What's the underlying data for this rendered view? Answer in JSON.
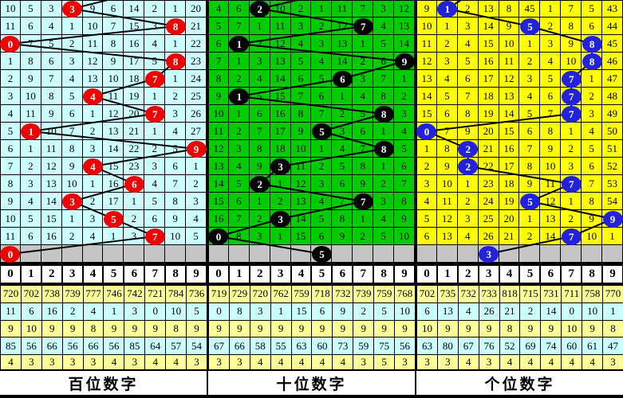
{
  "chart_data": {
    "type": "table",
    "description_labels": {
      "hundreds": "百位数字",
      "tens": "十位数字",
      "units": "个位数字"
    },
    "digits_header": [
      "0",
      "1",
      "2",
      "3",
      "4",
      "5",
      "6",
      "7",
      "8",
      "9"
    ],
    "colors": {
      "gray_row": "#C5C5C5",
      "stats_stripes": [
        "#FFFF99",
        "#CCFFFF",
        "#FFFF99",
        "#CCFFFF",
        "#FFFF99"
      ],
      "line": "#000000",
      "grid_border": "#000000"
    },
    "panels": [
      {
        "id": "hundreds",
        "footer_label": "百位数字",
        "bg": "#CCFFFF",
        "ball_color": "#EE0000",
        "entry_col": 6.6,
        "rows": [
          [
            10,
            5,
            3,
            "B",
            9,
            6,
            14,
            2,
            1,
            20
          ],
          [
            11,
            6,
            4,
            1,
            10,
            7,
            15,
            3,
            "B",
            21
          ],
          [
            "B",
            7,
            5,
            2,
            11,
            8,
            16,
            4,
            1,
            22
          ],
          [
            1,
            8,
            6,
            3,
            12,
            9,
            17,
            5,
            "B",
            23
          ],
          [
            2,
            9,
            7,
            4,
            13,
            10,
            18,
            "B",
            1,
            24
          ],
          [
            3,
            10,
            8,
            5,
            "B",
            11,
            19,
            1,
            2,
            25
          ],
          [
            4,
            11,
            9,
            6,
            1,
            12,
            20,
            "B",
            3,
            26
          ],
          [
            5,
            "B",
            10,
            7,
            2,
            13,
            21,
            1,
            4,
            27
          ],
          [
            6,
            1,
            11,
            8,
            3,
            14,
            22,
            2,
            5,
            "B"
          ],
          [
            7,
            2,
            12,
            9,
            "B",
            15,
            23,
            3,
            6,
            1
          ],
          [
            8,
            3,
            13,
            10,
            1,
            16,
            "B",
            4,
            7,
            2
          ],
          [
            9,
            4,
            14,
            "B",
            2,
            17,
            1,
            5,
            8,
            3
          ],
          [
            10,
            5,
            15,
            1,
            3,
            "B",
            2,
            6,
            9,
            4
          ],
          [
            11,
            6,
            16,
            2,
            4,
            1,
            3,
            "B",
            10,
            5
          ]
        ],
        "gray_row_ball_col": 0,
        "stats": [
          [
            720,
            702,
            738,
            739,
            777,
            746,
            742,
            721,
            784,
            736
          ],
          [
            11,
            6,
            16,
            2,
            4,
            1,
            3,
            0,
            10,
            5
          ],
          [
            9,
            10,
            9,
            9,
            8,
            9,
            9,
            9,
            8,
            9
          ],
          [
            85,
            56,
            66,
            56,
            66,
            56,
            85,
            64,
            57,
            54
          ],
          [
            4,
            3,
            3,
            3,
            3,
            4,
            3,
            4,
            4,
            3
          ]
        ]
      },
      {
        "id": "tens",
        "footer_label": "十位数字",
        "bg": "#00CC00",
        "ball_color": "#000000",
        "entry_col": 5.8,
        "rows": [
          [
            4,
            6,
            "B",
            10,
            2,
            1,
            11,
            7,
            3,
            12
          ],
          [
            5,
            7,
            1,
            11,
            3,
            2,
            12,
            "B",
            4,
            13
          ],
          [
            6,
            "B",
            2,
            12,
            4,
            3,
            13,
            1,
            5,
            14
          ],
          [
            7,
            1,
            3,
            13,
            5,
            4,
            14,
            2,
            6,
            "B"
          ],
          [
            8,
            2,
            4,
            14,
            6,
            5,
            "B",
            3,
            7,
            1
          ],
          [
            9,
            "B",
            5,
            15,
            7,
            6,
            1,
            4,
            8,
            2
          ],
          [
            10,
            1,
            6,
            16,
            8,
            7,
            2,
            5,
            "B",
            3
          ],
          [
            11,
            2,
            7,
            17,
            9,
            "B",
            3,
            6,
            1,
            4
          ],
          [
            12,
            3,
            8,
            18,
            10,
            1,
            4,
            7,
            "B",
            5
          ],
          [
            13,
            4,
            9,
            "B",
            11,
            2,
            5,
            8,
            1,
            6
          ],
          [
            14,
            5,
            "B",
            1,
            12,
            3,
            6,
            9,
            2,
            7
          ],
          [
            15,
            6,
            1,
            2,
            13,
            4,
            7,
            "B",
            3,
            8
          ],
          [
            16,
            7,
            2,
            "B",
            14,
            5,
            8,
            1,
            4,
            9
          ],
          [
            "B",
            8,
            3,
            1,
            15,
            6,
            9,
            2,
            5,
            10
          ]
        ],
        "gray_row_ball_col": 5,
        "stats": [
          [
            719,
            729,
            720,
            762,
            759,
            718,
            732,
            739,
            759,
            768
          ],
          [
            0,
            8,
            3,
            1,
            15,
            6,
            9,
            2,
            5,
            10
          ],
          [
            9,
            9,
            9,
            9,
            9,
            9,
            9,
            9,
            9,
            9
          ],
          [
            67,
            66,
            58,
            55,
            63,
            60,
            73,
            59,
            75,
            56
          ],
          [
            3,
            3,
            4,
            4,
            4,
            4,
            4,
            3,
            5,
            3
          ]
        ]
      },
      {
        "id": "units",
        "footer_label": "个位数字",
        "bg": "#FFFF00",
        "ball_color": "#2222DD",
        "entry_col": 2.4,
        "rows": [
          [
            9,
            "B",
            2,
            13,
            8,
            45,
            1,
            7,
            5,
            43
          ],
          [
            10,
            1,
            3,
            14,
            9,
            "B",
            2,
            8,
            6,
            44
          ],
          [
            11,
            2,
            4,
            15,
            10,
            1,
            3,
            9,
            "B",
            45
          ],
          [
            12,
            3,
            5,
            16,
            11,
            2,
            4,
            10,
            "B",
            46
          ],
          [
            13,
            4,
            6,
            17,
            12,
            3,
            5,
            "B",
            1,
            47
          ],
          [
            14,
            5,
            7,
            18,
            13,
            4,
            6,
            "B",
            2,
            48
          ],
          [
            15,
            6,
            8,
            19,
            14,
            5,
            7,
            "B",
            3,
            49
          ],
          [
            "B",
            7,
            9,
            20,
            15,
            6,
            8,
            1,
            4,
            50
          ],
          [
            1,
            8,
            "B",
            21,
            16,
            7,
            9,
            2,
            5,
            51
          ],
          [
            2,
            9,
            "B",
            22,
            17,
            8,
            10,
            3,
            6,
            52
          ],
          [
            3,
            10,
            1,
            23,
            18,
            9,
            11,
            "B",
            7,
            53
          ],
          [
            4,
            11,
            2,
            24,
            19,
            "B",
            12,
            1,
            8,
            54
          ],
          [
            5,
            12,
            3,
            25,
            20,
            1,
            13,
            2,
            9,
            "B"
          ],
          [
            6,
            13,
            4,
            26,
            21,
            2,
            14,
            "B",
            10,
            1
          ]
        ],
        "gray_row_ball_col": 3,
        "stats": [
          [
            702,
            735,
            732,
            733,
            818,
            715,
            731,
            711,
            758,
            770
          ],
          [
            6,
            13,
            4,
            26,
            21,
            2,
            14,
            0,
            10,
            1
          ],
          [
            10,
            9,
            9,
            9,
            8,
            9,
            9,
            10,
            9,
            8
          ],
          [
            63,
            80,
            67,
            76,
            52,
            69,
            74,
            60,
            61,
            47
          ],
          [
            3,
            3,
            4,
            3,
            4,
            4,
            4,
            4,
            4,
            3
          ]
        ]
      }
    ]
  }
}
